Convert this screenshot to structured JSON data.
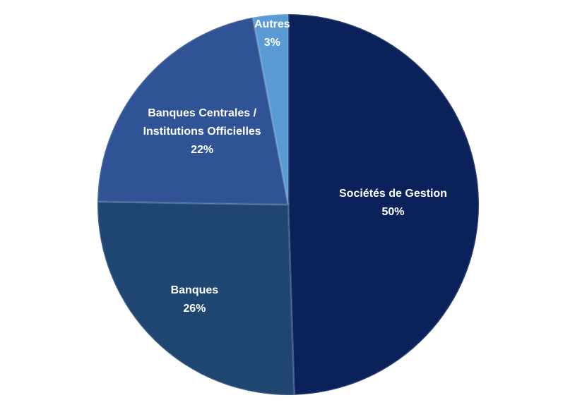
{
  "chart_data": {
    "type": "pie",
    "categories": [
      "Sociétés de Gestion",
      "Banques",
      "Banques Centrales / Institutions Officielles",
      "Autres"
    ],
    "values": [
      50,
      26,
      22,
      3
    ],
    "value_labels": [
      "50%",
      "26%",
      "22%",
      "3%"
    ],
    "colors": [
      "#0b215a",
      "#1f4671",
      "#2f5394",
      "#5b9bd5"
    ]
  }
}
